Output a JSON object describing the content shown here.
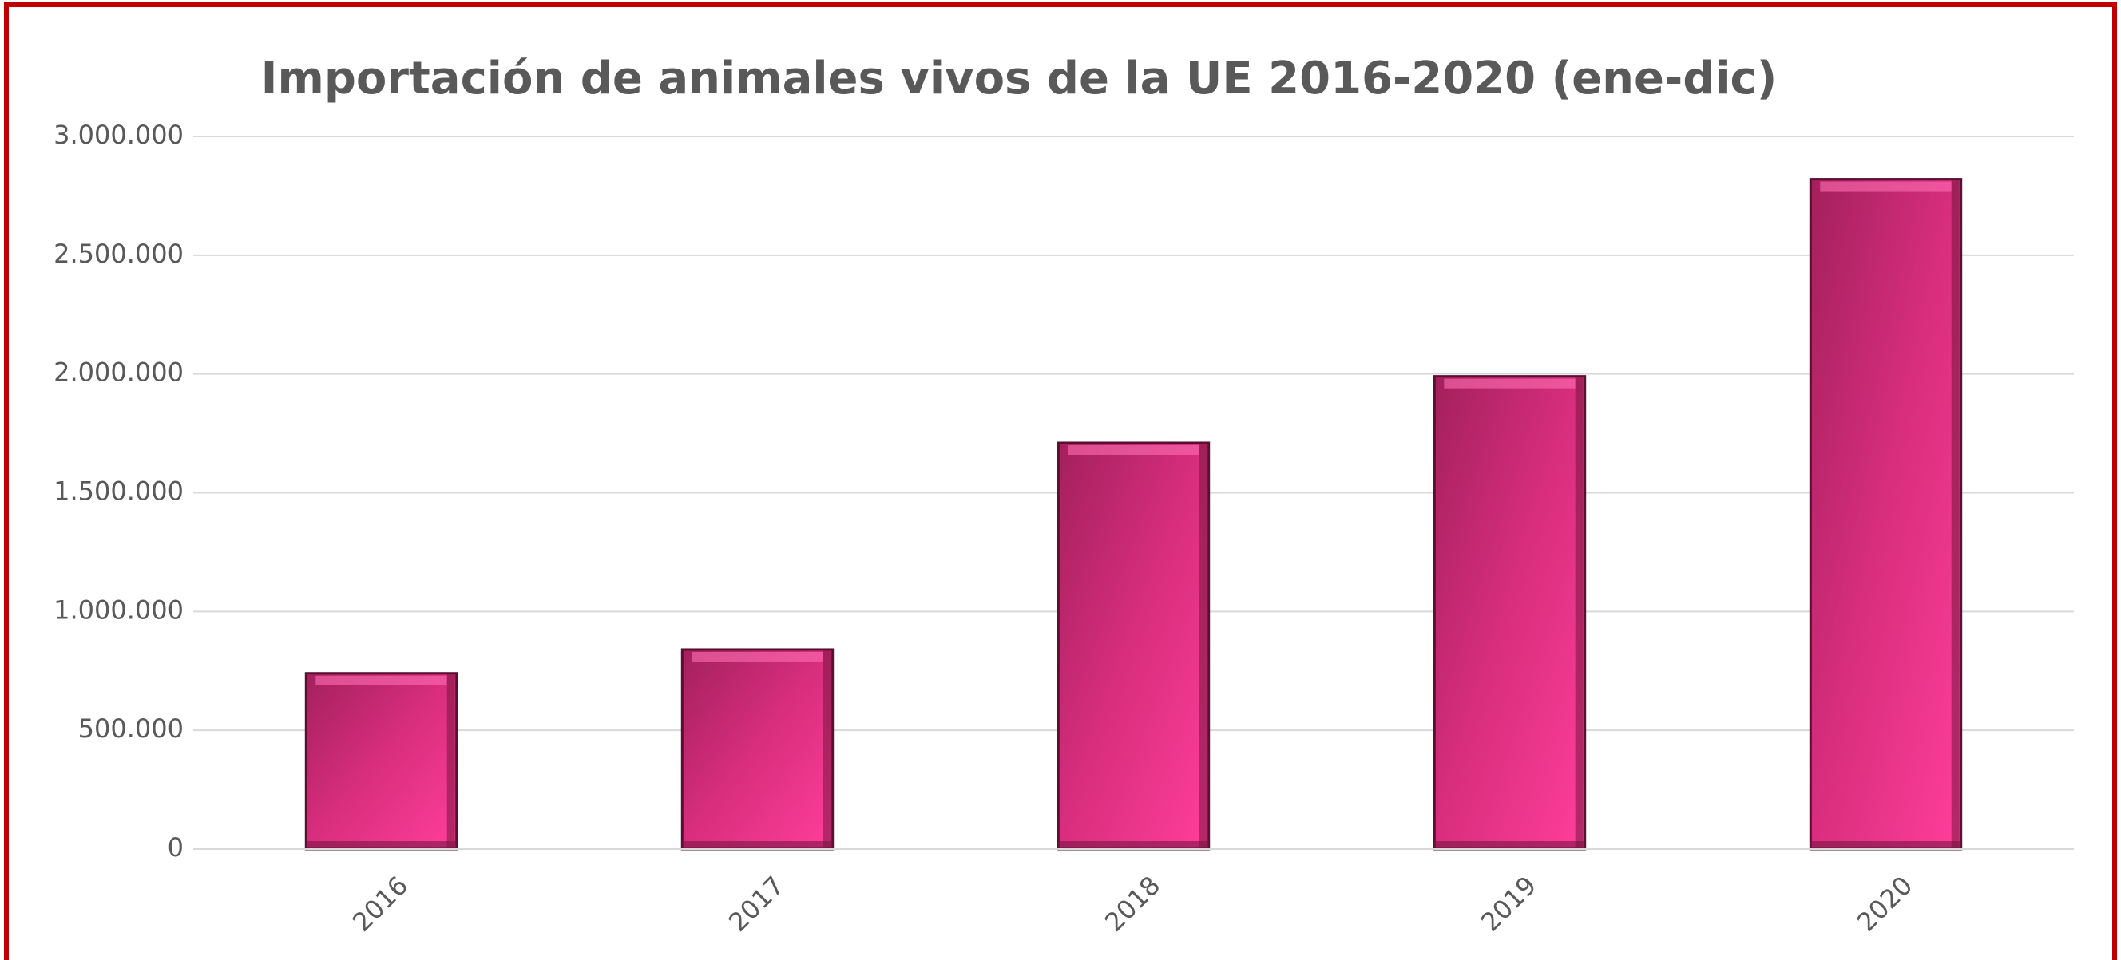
{
  "chart_data": {
    "type": "bar",
    "title": "Importación de animales vivos de la UE  2016-2020 (ene-dic)",
    "categories": [
      "2016",
      "2017",
      "2018",
      "2019",
      "2020"
    ],
    "values": [
      740000,
      840000,
      1710000,
      1990000,
      2820000
    ],
    "color": "#e8348a",
    "ylim": [
      0,
      3000000
    ],
    "yticks": [
      0,
      {
        "value": 500000,
        "label": "500.000"
      },
      {
        "value": 1000000,
        "label": "1.000.000"
      },
      {
        "value": 1500000,
        "label": "1.500.000"
      },
      {
        "value": 2000000,
        "label": "2.000.000"
      },
      {
        "value": 2500000,
        "label": "2.500.000"
      },
      {
        "value": 3000000,
        "label": "3.000.000"
      }
    ],
    "grid": true
  }
}
